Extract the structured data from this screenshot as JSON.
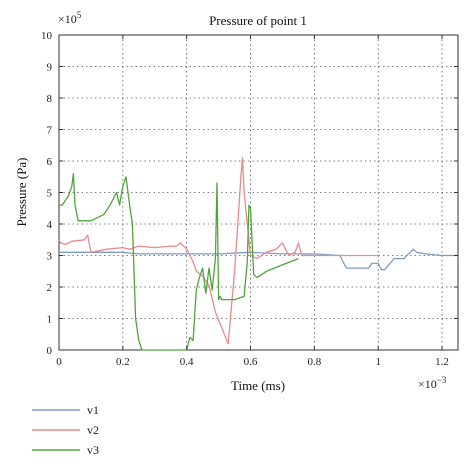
{
  "chart_data": {
    "type": "line",
    "title": "Pressure of point 1",
    "xlabel": "Time (ms)",
    "ylabel": "Pressure (Pa)",
    "x_multiplier": "×10",
    "x_exponent": "−3",
    "y_multiplier": "×10",
    "y_exponent": "5",
    "xlim": [
      0,
      1.25
    ],
    "ylim": [
      0,
      10
    ],
    "x_ticks": [
      "0",
      "0.2",
      "0.4",
      "0.6",
      "0.8",
      "1",
      "1.2"
    ],
    "x_tick_values": [
      0,
      0.2,
      0.4,
      0.6,
      0.8,
      1.0,
      1.2
    ],
    "y_ticks": [
      "0",
      "1",
      "2",
      "3",
      "4",
      "5",
      "6",
      "7",
      "8",
      "9",
      "10"
    ],
    "y_tick_values": [
      0,
      1,
      2,
      3,
      4,
      5,
      6,
      7,
      8,
      9,
      10
    ],
    "grid": true,
    "legend_position": "bottom-left",
    "series": [
      {
        "name": "v1",
        "color": "#7f9cc7",
        "x": [
          0,
          0.1,
          0.2,
          0.25,
          0.4,
          0.5,
          0.6,
          0.7,
          0.8,
          0.88,
          0.9,
          0.92,
          0.97,
          0.98,
          1.0,
          1.01,
          1.02,
          1.05,
          1.08,
          1.1,
          1.11,
          1.12,
          1.15,
          1.2,
          1.25
        ],
        "y": [
          3.1,
          3.1,
          3.1,
          3.05,
          3.05,
          3.05,
          3.1,
          3.05,
          3.05,
          3.0,
          2.6,
          2.6,
          2.6,
          2.75,
          2.75,
          2.55,
          2.55,
          2.9,
          2.9,
          3.1,
          3.2,
          3.1,
          3.05,
          3.0,
          3.0
        ]
      },
      {
        "name": "v2",
        "color": "#e88a8a",
        "x": [
          0,
          0.005,
          0.02,
          0.04,
          0.08,
          0.09,
          0.1,
          0.15,
          0.2,
          0.22,
          0.25,
          0.3,
          0.35,
          0.37,
          0.38,
          0.4,
          0.42,
          0.43,
          0.45,
          0.47,
          0.49,
          0.51,
          0.53,
          0.55,
          0.57,
          0.575,
          0.58,
          0.6,
          0.62,
          0.65,
          0.68,
          0.7,
          0.72,
          0.74,
          0.75,
          0.76,
          0.8,
          0.9,
          1.0
        ],
        "y": [
          3.5,
          3.4,
          3.35,
          3.45,
          3.5,
          3.65,
          3.1,
          3.2,
          3.25,
          3.2,
          3.3,
          3.25,
          3.3,
          3.3,
          3.4,
          3.2,
          2.8,
          2.5,
          2.35,
          2.05,
          1.2,
          0.7,
          0.2,
          2.5,
          5.5,
          6.1,
          5.0,
          3.0,
          2.9,
          3.1,
          3.2,
          3.4,
          3.0,
          3.1,
          3.4,
          3.0,
          3.0,
          3.0,
          3.0
        ]
      },
      {
        "name": "v3",
        "color": "#4fa53b",
        "x": [
          0,
          0.01,
          0.03,
          0.04,
          0.045,
          0.05,
          0.06,
          0.1,
          0.14,
          0.16,
          0.18,
          0.19,
          0.2,
          0.21,
          0.22,
          0.23,
          0.24,
          0.25,
          0.26,
          0.27,
          0.3,
          0.35,
          0.38,
          0.4,
          0.41,
          0.42,
          0.43,
          0.44,
          0.45,
          0.46,
          0.47,
          0.48,
          0.49,
          0.495,
          0.5,
          0.505,
          0.51,
          0.55,
          0.58,
          0.59,
          0.595,
          0.6,
          0.61,
          0.62,
          0.65,
          0.7,
          0.75
        ],
        "y": [
          4.6,
          4.6,
          4.9,
          5.2,
          5.6,
          4.6,
          4.1,
          4.1,
          4.3,
          4.6,
          5.0,
          4.6,
          5.2,
          5.5,
          4.7,
          4.0,
          1.0,
          0.3,
          0.0,
          0.0,
          0.0,
          0.0,
          0.0,
          0.0,
          0.4,
          0.3,
          1.9,
          2.3,
          2.6,
          1.8,
          2.6,
          1.9,
          2.9,
          5.3,
          1.6,
          1.7,
          1.6,
          1.6,
          1.7,
          2.8,
          4.6,
          4.5,
          2.4,
          2.3,
          2.5,
          2.7,
          2.9
        ]
      }
    ]
  }
}
